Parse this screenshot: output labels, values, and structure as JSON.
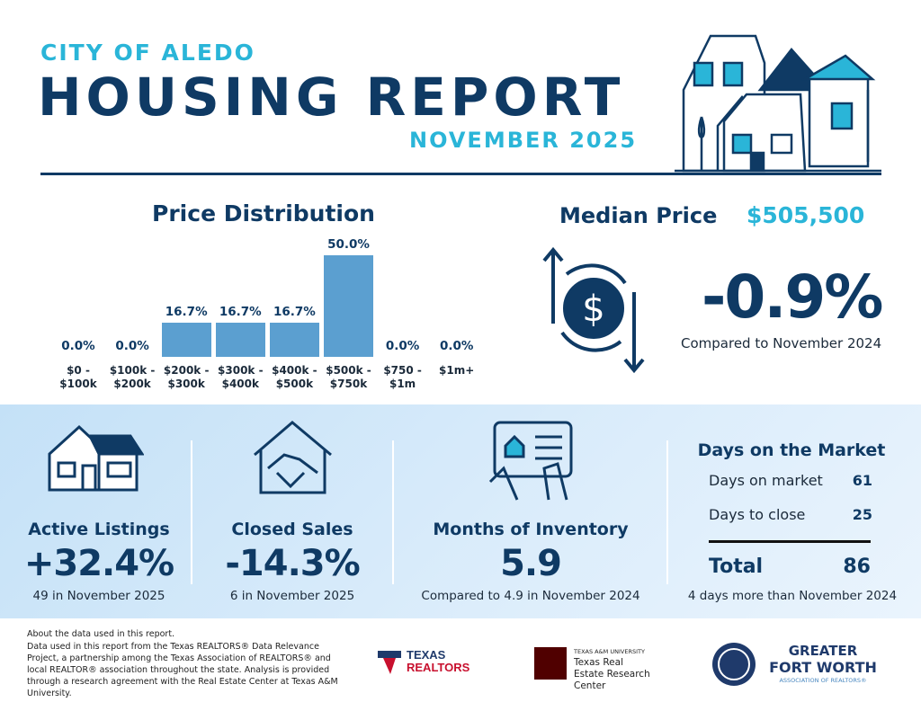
{
  "header": {
    "kicker": "CITY OF ALEDO",
    "title": "HOUSING REPORT",
    "date": "NOVEMBER 2025"
  },
  "chart_data": {
    "type": "bar",
    "title": "Price Distribution",
    "categories": [
      "$0 - $100k",
      "$100k - $200k",
      "$200k - $300k",
      "$300k - $400k",
      "$400k - $500k",
      "$500k - $750k",
      "$750 - $1m",
      "$1m+"
    ],
    "values": [
      0,
      0,
      16.7,
      16.7,
      16.7,
      50,
      0,
      0
    ],
    "value_labels": [
      "0.0%",
      "0.0%",
      "16.7%",
      "16.7%",
      "16.7%",
      "50.0%",
      "0.0%",
      "0.0%"
    ],
    "color": "#5b9fd0"
  },
  "median_price": {
    "label": "Median Price",
    "value": "$505,500",
    "change": "-0.9%",
    "comparison": "Compared to November 2024"
  },
  "metrics": [
    {
      "label": "Active Listings",
      "value": "+32.4%",
      "note": "49 in November 2025"
    },
    {
      "label": "Closed Sales",
      "value": "-14.3%",
      "note": "6 in November 2025"
    },
    {
      "label": "Months of Inventory",
      "value": 5.9,
      "note": "Compared to 4.9 in November 2024"
    }
  ],
  "days_on_market": {
    "title": "Days on the Market",
    "rows": [
      {
        "label": "Days on market",
        "value": 61
      },
      {
        "label": "Days to close",
        "value": 25
      }
    ],
    "total_label": "Total",
    "total": 86,
    "note": "4 days more than November 2024"
  },
  "footer": {
    "about": "About the data used in this report.",
    "text": "Data used in this report from the Texas REALTORS® Data Relevance Project, a partnership among the Texas Association of REALTORS® and local REALTOR® association throughout the state. Analysis is provided through a research agreement with the Real Estate Center at Texas A&M University.",
    "logos": {
      "texas_realtors": [
        "TEXAS",
        "REALTORS"
      ],
      "tamu": {
        "small": "TEXAS A&M UNIVERSITY",
        "name": "Texas Real Estate Research Center"
      },
      "gfw": {
        "line1": "GREATER",
        "line2": "FORT WORTH",
        "line3": "ASSOCIATION OF REALTORS®"
      }
    }
  }
}
